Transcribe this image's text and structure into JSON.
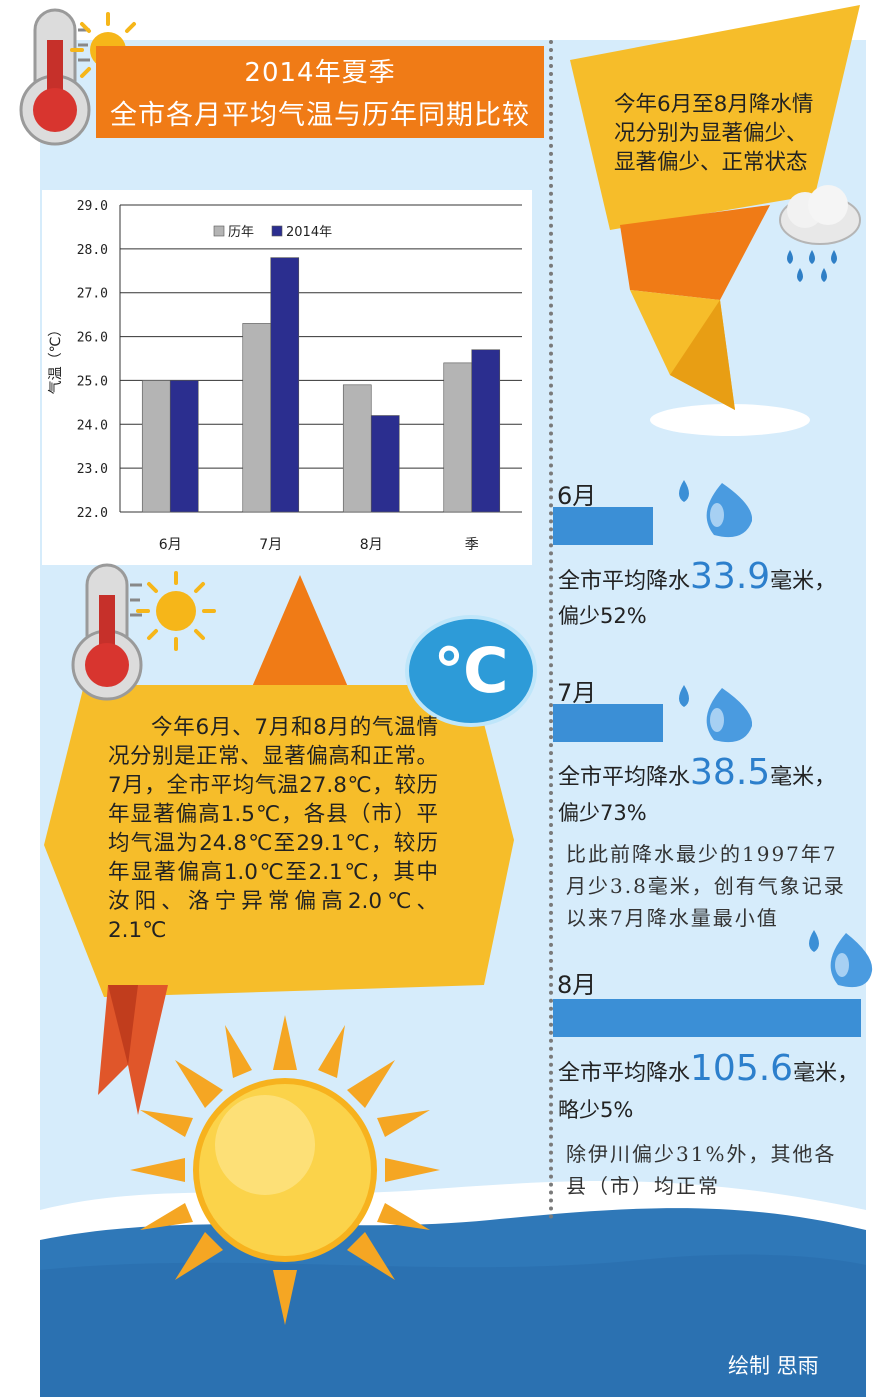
{
  "header": {
    "title_line1": "2014年夏季",
    "title_line2": "全市各月平均气温与历年同期比较"
  },
  "chart_data": {
    "type": "bar",
    "categories": [
      "6月",
      "7月",
      "8月",
      "季"
    ],
    "series": [
      {
        "name": "历年",
        "values": [
          25.0,
          26.3,
          24.9,
          25.4
        ],
        "color": "#b4b4b4"
      },
      {
        "name": "2014年",
        "values": [
          25.0,
          27.8,
          24.2,
          25.7
        ],
        "color": "#2b2e8f"
      }
    ],
    "ylabel": "气温（℃）",
    "ylim": [
      22.0,
      29.0
    ],
    "yticks": [
      "22.0",
      "23.0",
      "24.0",
      "25.0",
      "26.0",
      "27.0",
      "28.0",
      "29.0"
    ],
    "grid": true,
    "legend": "top-center"
  },
  "temperature_summary": "今年6月、7月和8月的气温情况分别是正常、显著偏高和正常。7月，全市平均气温27.8℃，较历年显著偏高1.5℃，各县（市）平均气温为24.8℃至29.1℃，较历年显著偏高1.0℃至2.1℃，其中汝阳、洛宁异常偏高2.0℃、2.1℃",
  "celsius_badge": "℃",
  "rain_summary": "今年6月至8月降水情况分别为显著偏少、显著偏少、正常状态",
  "months": [
    {
      "label": "6月",
      "prefix": "全市平均降水",
      "value": "33.9",
      "unit": "毫米，",
      "pct": "偏少52%",
      "note": ""
    },
    {
      "label": "7月",
      "prefix": "全市平均降水",
      "value": "38.5",
      "unit": "毫米，",
      "pct": "偏少73%",
      "note": "比此前降水最少的1997年7月少3.8毫米，创有气象记录以来7月降水量最小值"
    },
    {
      "label": "8月",
      "prefix": "全市平均降水",
      "value": "105.6",
      "unit": "毫米，",
      "pct": "略少5%",
      "note": "除伊川偏少31%外，其他各县（市）均正常"
    }
  ],
  "credit": "绘制 思雨",
  "colors": {
    "orange": "#f07b16",
    "yellow": "#f6bd2a",
    "blue_bar": "#3b8fd6",
    "sea": "#2f78b8",
    "panel": "#d6ecfb"
  },
  "icons": [
    "thermometer-icon",
    "sun-icon",
    "celsius-icon",
    "cloud-rain-icon",
    "water-drop-icon"
  ]
}
